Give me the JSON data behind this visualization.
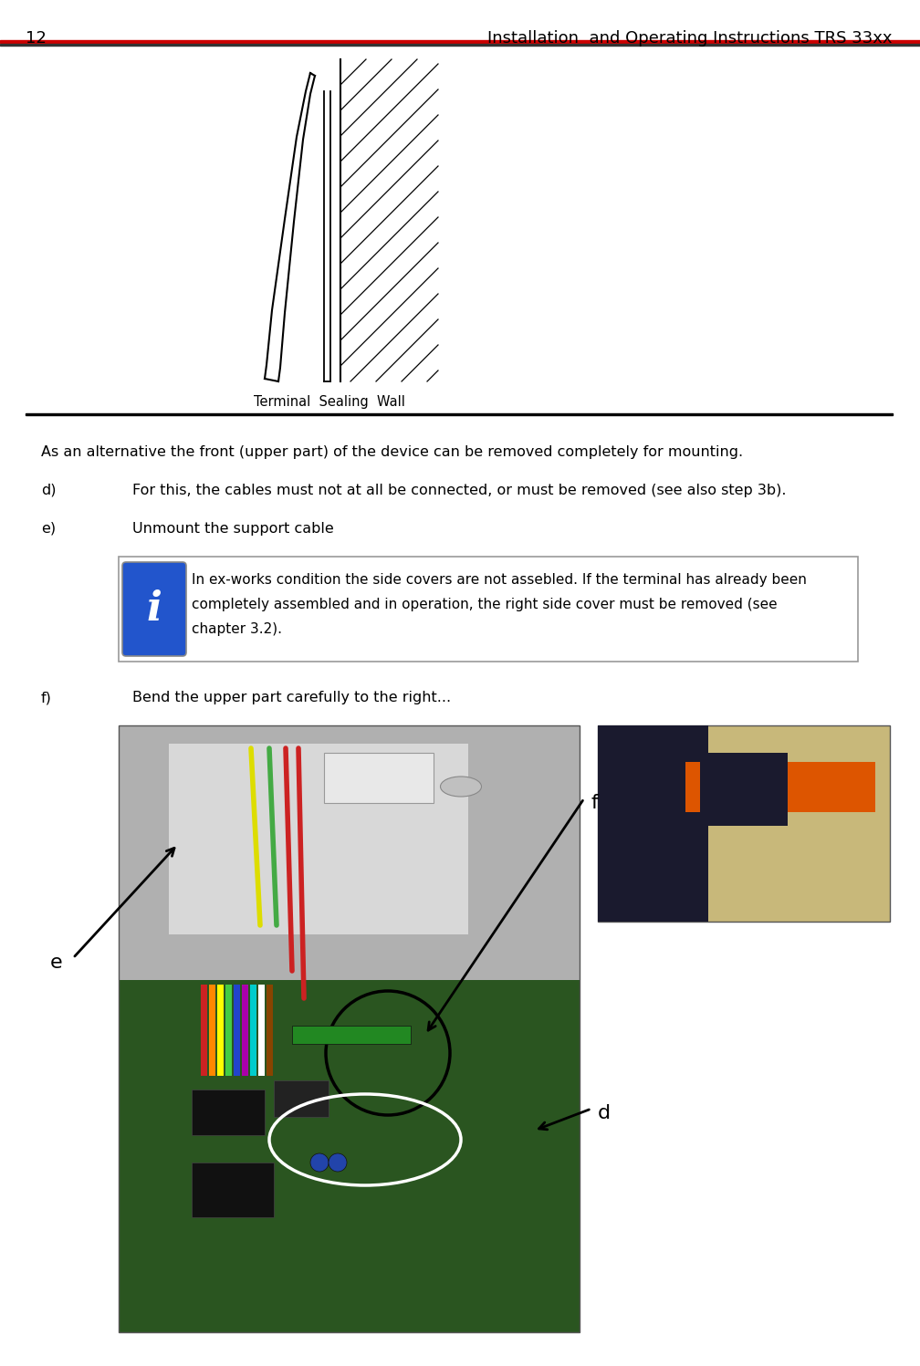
{
  "page_number": "12",
  "header_title": "Installation  and Operating Instructions TRS 33xx",
  "header_line_color": "#cc0000",
  "diagram_label": "Terminal  Sealing  Wall",
  "body_text_intro": "As an alternative the front (upper part) of the device can be removed completely for mounting.",
  "item_d_label": "d)",
  "item_d_text": "For this, the cables must not at all be connected, or must be removed (see also step 3b).",
  "item_e_label": "e)",
  "item_e_text": "Unmount the support cable",
  "info_text_line1": "In ex-works condition the side covers are not assebled. If the terminal has already been",
  "info_text_line2": "completely assembled and in operation, the right side cover must be removed (see",
  "info_text_line3": "chapter 3.2).",
  "item_f_label": "f)",
  "item_f_text": "Bend the upper part carefully to the right...",
  "label_e": "e",
  "label_f": "f",
  "label_d": "d",
  "bg_color": "#ffffff",
  "text_color": "#000000",
  "info_box_border": "#aaaaaa",
  "info_box_bg": "#ffffff",
  "info_icon_bg": "#2255cc",
  "info_icon_border": "#aaaaaa"
}
